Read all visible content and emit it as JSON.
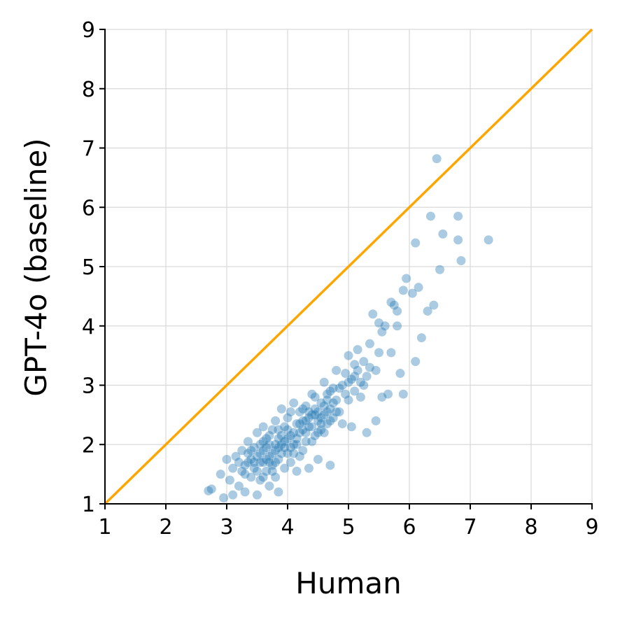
{
  "chart_data": {
    "type": "scatter",
    "xlabel": "Human",
    "ylabel": "GPT-4o (baseline)",
    "xlim": [
      1,
      9
    ],
    "ylim": [
      1,
      9
    ],
    "xticks": [
      "1",
      "2",
      "3",
      "4",
      "5",
      "6",
      "7",
      "8",
      "9"
    ],
    "yticks": [
      "1",
      "2",
      "3",
      "4",
      "5",
      "6",
      "7",
      "8",
      "9"
    ],
    "grid": true,
    "reference_line": {
      "x": [
        1,
        9
      ],
      "y": [
        1,
        9
      ],
      "color": "#ffa500"
    },
    "point_color": "#1f77b4",
    "series": [
      {
        "points": [
          [
            2.7,
            1.22
          ],
          [
            2.75,
            1.25
          ],
          [
            2.95,
            1.1
          ],
          [
            2.9,
            1.5
          ],
          [
            3.0,
            1.75
          ],
          [
            3.05,
            1.4
          ],
          [
            3.1,
            1.6
          ],
          [
            3.1,
            1.15
          ],
          [
            3.15,
            1.8
          ],
          [
            3.2,
            1.7
          ],
          [
            3.2,
            1.3
          ],
          [
            3.25,
            1.55
          ],
          [
            3.25,
            1.9
          ],
          [
            3.3,
            1.65
          ],
          [
            3.3,
            1.2
          ],
          [
            3.35,
            1.85
          ],
          [
            3.35,
            2.05
          ],
          [
            3.4,
            1.45
          ],
          [
            3.4,
            1.75
          ],
          [
            3.45,
            1.95
          ],
          [
            3.45,
            1.6
          ],
          [
            3.5,
            1.15
          ],
          [
            3.5,
            2.2
          ],
          [
            3.5,
            1.8
          ],
          [
            3.55,
            1.4
          ],
          [
            3.55,
            2.0
          ],
          [
            3.6,
            1.7
          ],
          [
            3.6,
            1.9
          ],
          [
            3.6,
            2.3
          ],
          [
            3.65,
            1.55
          ],
          [
            3.65,
            2.1
          ],
          [
            3.7,
            1.8
          ],
          [
            3.7,
            1.3
          ],
          [
            3.7,
            2.0
          ],
          [
            3.75,
            1.65
          ],
          [
            3.75,
            2.25
          ],
          [
            3.8,
            1.9
          ],
          [
            3.8,
            1.45
          ],
          [
            3.8,
            2.4
          ],
          [
            3.85,
            1.2
          ],
          [
            3.85,
            2.1
          ],
          [
            3.85,
            1.75
          ],
          [
            3.9,
            2.0
          ],
          [
            3.9,
            2.6
          ],
          [
            3.95,
            1.6
          ],
          [
            3.95,
            2.3
          ],
          [
            4.0,
            1.85
          ],
          [
            4.0,
            2.45
          ],
          [
            4.05,
            2.15
          ],
          [
            4.05,
            1.7
          ],
          [
            4.1,
            2.0
          ],
          [
            4.1,
            2.7
          ],
          [
            4.15,
            2.35
          ],
          [
            4.15,
            1.55
          ],
          [
            4.2,
            2.2
          ],
          [
            4.2,
            2.55
          ],
          [
            4.25,
            1.9
          ],
          [
            4.25,
            2.4
          ],
          [
            4.3,
            2.65
          ],
          [
            4.3,
            2.05
          ],
          [
            4.35,
            2.3
          ],
          [
            4.35,
            1.6
          ],
          [
            4.4,
            2.5
          ],
          [
            4.4,
            2.85
          ],
          [
            4.45,
            2.15
          ],
          [
            4.45,
            2.6
          ],
          [
            4.5,
            2.4
          ],
          [
            4.5,
            1.75
          ],
          [
            4.55,
            2.7
          ],
          [
            4.55,
            2.25
          ],
          [
            4.6,
            2.5
          ],
          [
            4.6,
            3.05
          ],
          [
            4.65,
            2.35
          ],
          [
            4.65,
            2.85
          ],
          [
            4.7,
            2.6
          ],
          [
            4.7,
            1.65
          ],
          [
            4.75,
            2.95
          ],
          [
            4.75,
            2.45
          ],
          [
            4.8,
            2.75
          ],
          [
            4.8,
            3.25
          ],
          [
            4.85,
            2.55
          ],
          [
            4.9,
            3.0
          ],
          [
            4.9,
            2.35
          ],
          [
            4.95,
            3.2
          ],
          [
            5.0,
            2.75
          ],
          [
            5.0,
            3.5
          ],
          [
            5.05,
            2.3
          ],
          [
            5.05,
            3.1
          ],
          [
            5.1,
            3.35
          ],
          [
            5.1,
            2.9
          ],
          [
            5.15,
            3.6
          ],
          [
            5.2,
            3.05
          ],
          [
            5.2,
            2.8
          ],
          [
            5.25,
            3.4
          ],
          [
            5.3,
            2.2
          ],
          [
            5.3,
            3.15
          ],
          [
            5.35,
            3.7
          ],
          [
            5.4,
            4.2
          ],
          [
            5.45,
            3.25
          ],
          [
            5.45,
            2.4
          ],
          [
            5.5,
            3.55
          ],
          [
            5.5,
            4.05
          ],
          [
            5.55,
            2.8
          ],
          [
            5.55,
            3.9
          ],
          [
            5.6,
            4.0
          ],
          [
            5.65,
            2.85
          ],
          [
            5.7,
            3.55
          ],
          [
            5.7,
            4.4
          ],
          [
            5.75,
            4.35
          ],
          [
            5.8,
            4.0
          ],
          [
            5.8,
            4.25
          ],
          [
            5.85,
            3.2
          ],
          [
            5.9,
            4.6
          ],
          [
            5.9,
            2.85
          ],
          [
            5.95,
            4.8
          ],
          [
            6.05,
            4.55
          ],
          [
            6.1,
            3.4
          ],
          [
            6.1,
            5.4
          ],
          [
            6.15,
            4.65
          ],
          [
            6.2,
            3.8
          ],
          [
            6.3,
            4.25
          ],
          [
            6.35,
            5.85
          ],
          [
            6.4,
            4.35
          ],
          [
            6.45,
            6.82
          ],
          [
            6.5,
            4.95
          ],
          [
            6.55,
            5.55
          ],
          [
            6.8,
            5.85
          ],
          [
            6.8,
            5.45
          ],
          [
            6.85,
            5.1
          ],
          [
            7.3,
            5.45
          ],
          [
            3.45,
            1.7
          ],
          [
            3.55,
            1.85
          ],
          [
            3.6,
            2.05
          ],
          [
            3.65,
            1.95
          ],
          [
            3.7,
            1.7
          ],
          [
            3.75,
            1.85
          ],
          [
            3.8,
            2.0
          ],
          [
            3.85,
            1.95
          ],
          [
            3.9,
            1.85
          ],
          [
            3.95,
            2.05
          ],
          [
            4.0,
            2.1
          ],
          [
            4.05,
            1.95
          ],
          [
            4.1,
            2.2
          ],
          [
            4.15,
            2.1
          ],
          [
            4.2,
            2.35
          ],
          [
            4.25,
            2.25
          ],
          [
            4.3,
            2.4
          ],
          [
            4.35,
            2.45
          ],
          [
            4.4,
            2.3
          ],
          [
            4.45,
            2.5
          ],
          [
            4.5,
            2.55
          ],
          [
            4.55,
            2.45
          ],
          [
            4.6,
            2.65
          ],
          [
            4.65,
            2.55
          ],
          [
            4.7,
            2.4
          ],
          [
            4.75,
            2.7
          ],
          [
            3.3,
            1.5
          ],
          [
            3.35,
            1.7
          ],
          [
            3.4,
            1.9
          ],
          [
            3.5,
            1.55
          ],
          [
            3.55,
            1.7
          ],
          [
            3.6,
            1.45
          ],
          [
            3.65,
            1.75
          ],
          [
            3.7,
            2.15
          ],
          [
            3.75,
            1.55
          ],
          [
            3.8,
            1.7
          ],
          [
            3.85,
            2.25
          ],
          [
            3.9,
            2.15
          ],
          [
            3.95,
            1.95
          ],
          [
            4.0,
            2.25
          ],
          [
            4.05,
            2.55
          ],
          [
            4.1,
            1.85
          ],
          [
            4.15,
            2.0
          ],
          [
            4.2,
            1.8
          ],
          [
            4.25,
            2.6
          ],
          [
            4.3,
            2.2
          ],
          [
            4.35,
            2.55
          ],
          [
            4.4,
            2.05
          ],
          [
            4.45,
            2.8
          ],
          [
            4.5,
            2.2
          ],
          [
            4.55,
            2.35
          ],
          [
            4.6,
            2.2
          ],
          [
            4.65,
            2.75
          ],
          [
            4.7,
            2.9
          ],
          [
            4.8,
            2.55
          ],
          [
            4.85,
            2.95
          ],
          [
            4.95,
            2.85
          ],
          [
            5.0,
            3.05
          ],
          [
            5.1,
            3.15
          ],
          [
            5.15,
            3.25
          ],
          [
            5.25,
            3.0
          ],
          [
            5.35,
            3.3
          ]
        ]
      }
    ]
  }
}
